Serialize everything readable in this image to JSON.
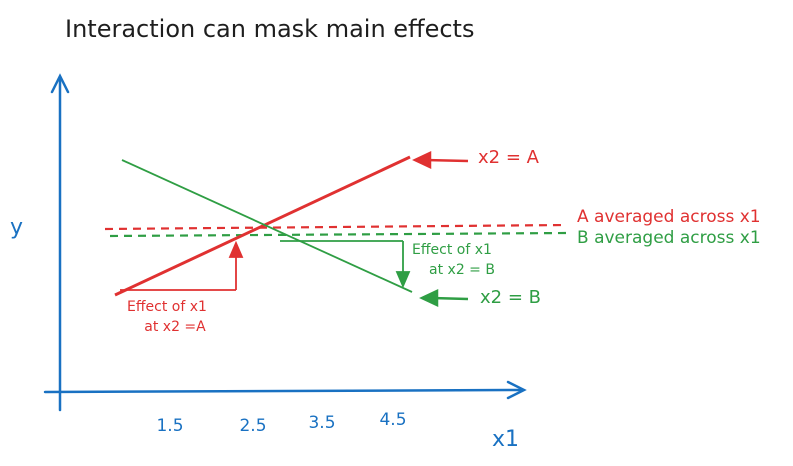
{
  "title": "Interaction can mask main effects",
  "axes": {
    "y_label": "y",
    "x_label": "x1",
    "x_ticks": [
      "1.5",
      "2.5",
      "3.5",
      "4.5"
    ]
  },
  "lines": {
    "a_label": "x2 = A",
    "b_label": "x2 = B"
  },
  "averages": {
    "a_label": "A averaged across x1",
    "b_label": "B averaged across x1"
  },
  "effects": {
    "a": [
      "Effect of x1",
      "at x2 =A"
    ],
    "b": [
      "Effect of x1",
      "at x2 = B"
    ]
  }
}
